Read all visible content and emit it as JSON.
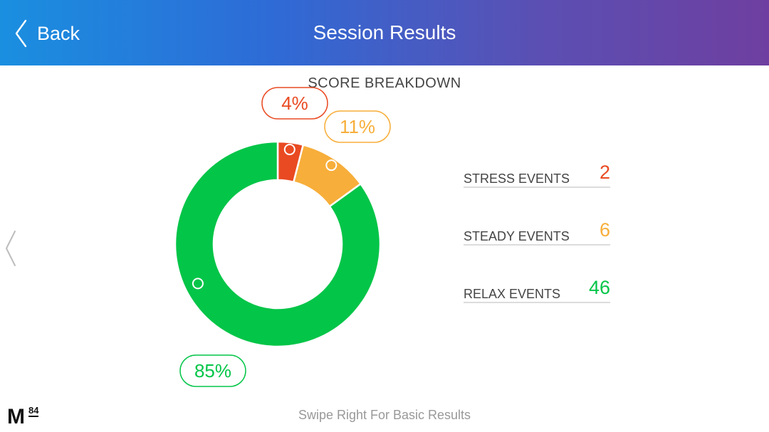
{
  "header": {
    "back_label": "Back",
    "title": "Session Results"
  },
  "section_title": "SCORE BREAKDOWN",
  "chart_data": {
    "type": "pie",
    "style": "donut",
    "categories": [
      "Stress",
      "Steady",
      "Relax"
    ],
    "values": [
      4,
      11,
      85
    ],
    "labels": [
      "4%",
      "11%",
      "85%"
    ],
    "colors": [
      "#e94a22",
      "#f7ae3a",
      "#03c548"
    ]
  },
  "stats": [
    {
      "label": "STRESS EVENTS",
      "value": "2",
      "color": "#e94a22"
    },
    {
      "label": "STEADY EVENTS",
      "value": "6",
      "color": "#f7ae3a"
    },
    {
      "label": "RELAX EVENTS",
      "value": "46",
      "color": "#03c548"
    }
  ],
  "footer": "Swipe Right For Basic Results",
  "logo": {
    "letter": "M",
    "number": "84"
  }
}
